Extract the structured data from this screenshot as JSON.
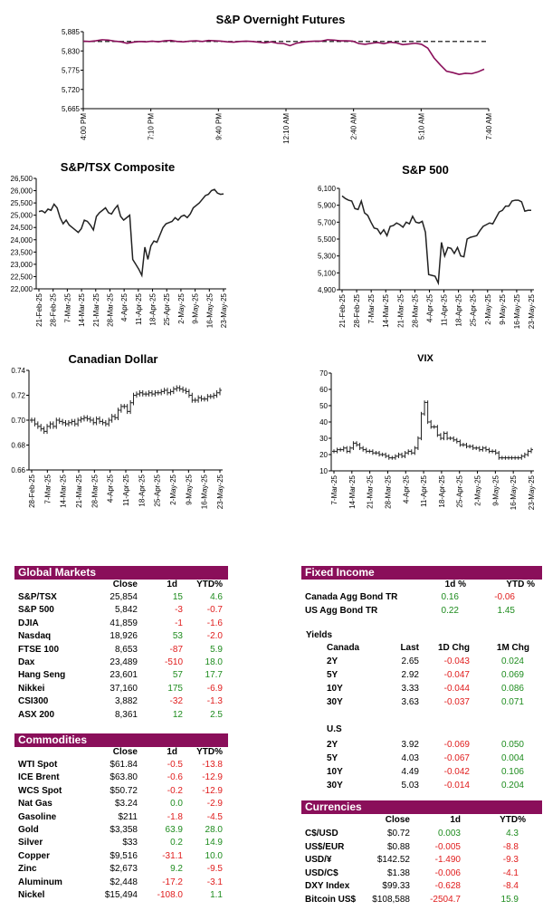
{
  "charts": {
    "overnight": {
      "title": "S&P Overnight Futures",
      "y_ticks": [
        "5,885",
        "5,830",
        "5,775",
        "5,720",
        "5,665"
      ],
      "x_ticks": [
        "4:00 PM",
        "7:10 PM",
        "9:40 PM",
        "12:10 AM",
        "2:40 AM",
        "5:10 AM",
        "7:40 AM"
      ],
      "ylim": [
        5665,
        5885
      ],
      "reference_level": 5857
    },
    "tsx": {
      "title": "S&P/TSX Composite",
      "y_ticks": [
        "26,500",
        "26,000",
        "25,500",
        "25,000",
        "24,500",
        "24,000",
        "23,500",
        "23,000",
        "22,500",
        "22,000"
      ],
      "x_ticks": [
        "21-Feb-25",
        "28-Feb-25",
        "7-Mar-25",
        "14-Mar-25",
        "21-Mar-25",
        "28-Mar-25",
        "4-Apr-25",
        "11-Apr-25",
        "18-Apr-25",
        "25-Apr-25",
        "2-May-25",
        "9-May-25",
        "16-May-25",
        "23-May-25"
      ],
      "ylim": [
        22000,
        26500
      ]
    },
    "sp500": {
      "title": "S&P 500",
      "y_ticks": [
        "6,100",
        "5,900",
        "5,700",
        "5,500",
        "5,300",
        "5,100",
        "4,900"
      ],
      "x_ticks": [
        "21-Feb-25",
        "28-Feb-25",
        "7-Mar-25",
        "14-Mar-25",
        "21-Mar-25",
        "28-Mar-25",
        "4-Apr-25",
        "11-Apr-25",
        "18-Apr-25",
        "25-Apr-25",
        "2-May-25",
        "9-May-25",
        "16-May-25",
        "23-May-25"
      ],
      "ylim": [
        4900,
        6100
      ]
    },
    "cad": {
      "title": "Canadian Dollar",
      "y_ticks": [
        "0.74",
        "0.72",
        "0.70",
        "0.68",
        "0.66"
      ],
      "x_ticks": [
        "28-Feb-25",
        "7-Mar-25",
        "14-Mar-25",
        "21-Mar-25",
        "28-Mar-25",
        "4-Apr-25",
        "11-Apr-25",
        "18-Apr-25",
        "25-Apr-25",
        "2-May-25",
        "9-May-25",
        "16-May-25",
        "23-May-25"
      ],
      "ylim": [
        0.66,
        0.74
      ]
    },
    "vix": {
      "title": "VIX",
      "y_ticks": [
        "70",
        "60",
        "50",
        "40",
        "30",
        "20",
        "10"
      ],
      "x_ticks": [
        "7-Mar-25",
        "14-Mar-25",
        "21-Mar-25",
        "28-Mar-25",
        "4-Apr-25",
        "11-Apr-25",
        "18-Apr-25",
        "25-Apr-25",
        "2-May-25",
        "9-May-25",
        "16-May-25",
        "23-May-25"
      ],
      "ylim": [
        10,
        70
      ]
    }
  },
  "chart_data": [
    {
      "type": "line",
      "title": "S&P Overnight Futures",
      "ylim": [
        5665,
        5885
      ],
      "values": [
        5858,
        5857,
        5859,
        5862,
        5861,
        5858,
        5856,
        5852,
        5855,
        5857,
        5856,
        5858,
        5856,
        5859,
        5860,
        5857,
        5856,
        5858,
        5859,
        5857,
        5860,
        5859,
        5858,
        5856,
        5855,
        5857,
        5858,
        5857,
        5855,
        5853,
        5856,
        5852,
        5851,
        5845,
        5852,
        5855,
        5857,
        5858,
        5858,
        5862,
        5861,
        5859,
        5859,
        5858,
        5851,
        5849,
        5852,
        5854,
        5851,
        5855,
        5853,
        5848,
        5850,
        5852,
        5849,
        5838,
        5810,
        5790,
        5772,
        5768,
        5763,
        5766,
        5765,
        5770,
        5778
      ]
    },
    {
      "type": "line",
      "title": "S&P/TSX Composite",
      "ylim": [
        22000,
        26500
      ],
      "values": [
        25150,
        25180,
        25100,
        25250,
        25200,
        25450,
        25300,
        24900,
        24650,
        24800,
        24600,
        24500,
        24400,
        24300,
        24450,
        24800,
        24750,
        24600,
        24400,
        24950,
        25100,
        25200,
        25300,
        25100,
        25050,
        25250,
        25400,
        24950,
        24800,
        24900,
        25000,
        23200,
        23000,
        22800,
        22550,
        23700,
        23200,
        23750,
        23950,
        23900,
        24200,
        24500,
        24650,
        24700,
        24750,
        24900,
        24800,
        24950,
        25000,
        24900,
        25050,
        25300,
        25400,
        25500,
        25650,
        25800,
        25850,
        26000,
        26050,
        25900,
        25850,
        25870
      ]
    },
    {
      "type": "line",
      "title": "S&P 500",
      "ylim": [
        4900,
        6100
      ],
      "values": [
        6010,
        5980,
        5960,
        5950,
        5860,
        5850,
        5950,
        5810,
        5780,
        5700,
        5630,
        5620,
        5560,
        5610,
        5540,
        5650,
        5660,
        5690,
        5670,
        5640,
        5700,
        5680,
        5770,
        5700,
        5690,
        5710,
        5580,
        5080,
        5070,
        5060,
        4980,
        5460,
        5300,
        5400,
        5390,
        5330,
        5400,
        5300,
        5290,
        5500,
        5520,
        5530,
        5540,
        5600,
        5650,
        5670,
        5690,
        5680,
        5750,
        5820,
        5840,
        5890,
        5890,
        5950,
        5960,
        5960,
        5940,
        5830,
        5840,
        5840
      ]
    },
    {
      "type": "bar",
      "title": "Canadian Dollar",
      "ylim": [
        0.66,
        0.74
      ],
      "values": [
        0.7,
        0.697,
        0.695,
        0.693,
        0.691,
        0.695,
        0.697,
        0.695,
        0.7,
        0.699,
        0.698,
        0.697,
        0.698,
        0.699,
        0.697,
        0.7,
        0.701,
        0.702,
        0.701,
        0.7,
        0.698,
        0.701,
        0.699,
        0.698,
        0.697,
        0.7,
        0.703,
        0.702,
        0.708,
        0.711,
        0.711,
        0.707,
        0.714,
        0.72,
        0.721,
        0.722,
        0.721,
        0.721,
        0.722,
        0.721,
        0.722,
        0.722,
        0.723,
        0.724,
        0.722,
        0.723,
        0.725,
        0.726,
        0.725,
        0.724,
        0.723,
        0.72,
        0.716,
        0.716,
        0.718,
        0.717,
        0.717,
        0.719,
        0.719,
        0.72,
        0.722,
        0.724
      ]
    },
    {
      "type": "bar",
      "title": "VIX",
      "ylim": [
        10,
        70
      ],
      "values": [
        22,
        23,
        23,
        24,
        22,
        24,
        27,
        26,
        24,
        23,
        22,
        22,
        21,
        21,
        20,
        20,
        19,
        18,
        18,
        19,
        20,
        19,
        21,
        22,
        21,
        24,
        30,
        45,
        52,
        40,
        37,
        37,
        32,
        30,
        33,
        30,
        30,
        29,
        28,
        26,
        26,
        25,
        25,
        24,
        24,
        23,
        24,
        23,
        22,
        22,
        21,
        18,
        18,
        18,
        18,
        18,
        18,
        18,
        19,
        20,
        22,
        23
      ]
    }
  ],
  "global_markets": {
    "title": "Global Markets",
    "headers": [
      "Close",
      "1d",
      "YTD%"
    ],
    "rows": [
      {
        "name": "S&P/TSX",
        "close": "25,854",
        "d1": "15",
        "ytd": "4.6"
      },
      {
        "name": "S&P 500",
        "close": "5,842",
        "d1": "-3",
        "ytd": "-0.7"
      },
      {
        "name": "DJIA",
        "close": "41,859",
        "d1": "-1",
        "ytd": "-1.6"
      },
      {
        "name": "Nasdaq",
        "close": "18,926",
        "d1": "53",
        "ytd": "-2.0"
      },
      {
        "name": "FTSE 100",
        "close": "8,653",
        "d1": "-87",
        "ytd": "5.9"
      },
      {
        "name": "Dax",
        "close": "23,489",
        "d1": "-510",
        "ytd": "18.0"
      },
      {
        "name": "Hang Seng",
        "close": "23,601",
        "d1": "57",
        "ytd": "17.7"
      },
      {
        "name": "Nikkei",
        "close": "37,160",
        "d1": "175",
        "ytd": "-6.9"
      },
      {
        "name": "CSI300",
        "close": "3,882",
        "d1": "-32",
        "ytd": "-1.3"
      },
      {
        "name": "ASX 200",
        "close": "8,361",
        "d1": "12",
        "ytd": "2.5"
      }
    ]
  },
  "commodities": {
    "title": "Commodities",
    "headers": [
      "Close",
      "1d",
      "YTD%"
    ],
    "rows": [
      {
        "name": "WTI Spot",
        "close": "$61.84",
        "d1": "-0.5",
        "ytd": "-13.8"
      },
      {
        "name": "ICE Brent",
        "close": "$63.80",
        "d1": "-0.6",
        "ytd": "-12.9"
      },
      {
        "name": "WCS Spot",
        "close": "$50.72",
        "d1": "-0.2",
        "ytd": "-12.9"
      },
      {
        "name": "Nat Gas",
        "close": "$3.24",
        "d1": "0.0",
        "ytd": "-2.9"
      },
      {
        "name": "Gasoline",
        "close": "$211",
        "d1": "-1.8",
        "ytd": "-4.5"
      },
      {
        "name": "Gold",
        "close": "$3,358",
        "d1": "63.9",
        "ytd": "28.0"
      },
      {
        "name": "Silver",
        "close": "$33",
        "d1": "0.2",
        "ytd": "14.9"
      },
      {
        "name": "Copper",
        "close": "$9,516",
        "d1": "-31.1",
        "ytd": "10.0"
      },
      {
        "name": "Zinc",
        "close": "$2,673",
        "d1": "9.2",
        "ytd": "-9.5"
      },
      {
        "name": "Aluminum",
        "close": "$2,448",
        "d1": "-17.2",
        "ytd": "-3.1"
      },
      {
        "name": "Nickel",
        "close": "$15,494",
        "d1": "-108.0",
        "ytd": "1.1"
      }
    ]
  },
  "fixed_income": {
    "title": "Fixed Income",
    "headers": [
      "1d %",
      "YTD %"
    ],
    "rows": [
      {
        "name": "Canada Agg Bond TR",
        "d1": "0.16",
        "ytd": "-0.06"
      },
      {
        "name": "US Agg Bond TR",
        "d1": "0.22",
        "ytd": "1.45"
      }
    ]
  },
  "yields": {
    "title": "Yields",
    "canada_label": "Canada",
    "us_label": "U.S",
    "headers": [
      "Last",
      "1D Chg",
      "1M Chg"
    ],
    "canada": [
      {
        "name": "2Y",
        "last": "2.65",
        "d1": "-0.043",
        "m1": "0.024"
      },
      {
        "name": "5Y",
        "last": "2.92",
        "d1": "-0.047",
        "m1": "0.069"
      },
      {
        "name": "10Y",
        "last": "3.33",
        "d1": "-0.044",
        "m1": "0.086"
      },
      {
        "name": "30Y",
        "last": "3.63",
        "d1": "-0.037",
        "m1": "0.071"
      }
    ],
    "us": [
      {
        "name": "2Y",
        "last": "3.92",
        "d1": "-0.069",
        "m1": "0.050"
      },
      {
        "name": "5Y",
        "last": "4.03",
        "d1": "-0.067",
        "m1": "0.004"
      },
      {
        "name": "10Y",
        "last": "4.49",
        "d1": "-0.042",
        "m1": "0.106"
      },
      {
        "name": "30Y",
        "last": "5.03",
        "d1": "-0.014",
        "m1": "0.204"
      }
    ]
  },
  "currencies": {
    "title": "Currencies",
    "headers": [
      "Close",
      "1d",
      "YTD%"
    ],
    "rows": [
      {
        "name": "C$/USD",
        "close": "$0.72",
        "d1": "0.003",
        "ytd": "4.3"
      },
      {
        "name": "US$/EUR",
        "close": "$0.88",
        "d1": "-0.005",
        "ytd": "-8.8"
      },
      {
        "name": "USD/¥",
        "close": "$142.52",
        "d1": "-1.490",
        "ytd": "-9.3"
      },
      {
        "name": "USD/C$",
        "close": "$1.38",
        "d1": "-0.006",
        "ytd": "-4.1"
      },
      {
        "name": "DXY Index",
        "close": "$99.33",
        "d1": "-0.628",
        "ytd": "-8.4"
      },
      {
        "name": "Bitcoin US$",
        "close": "$108,588",
        "d1": "-2504.7",
        "ytd": "15.9"
      }
    ]
  },
  "colors": {
    "header_bg": "#8a0f5a",
    "line": "#8a0f5a",
    "positive": "#1e8c1e",
    "negative": "#e01c1c"
  }
}
